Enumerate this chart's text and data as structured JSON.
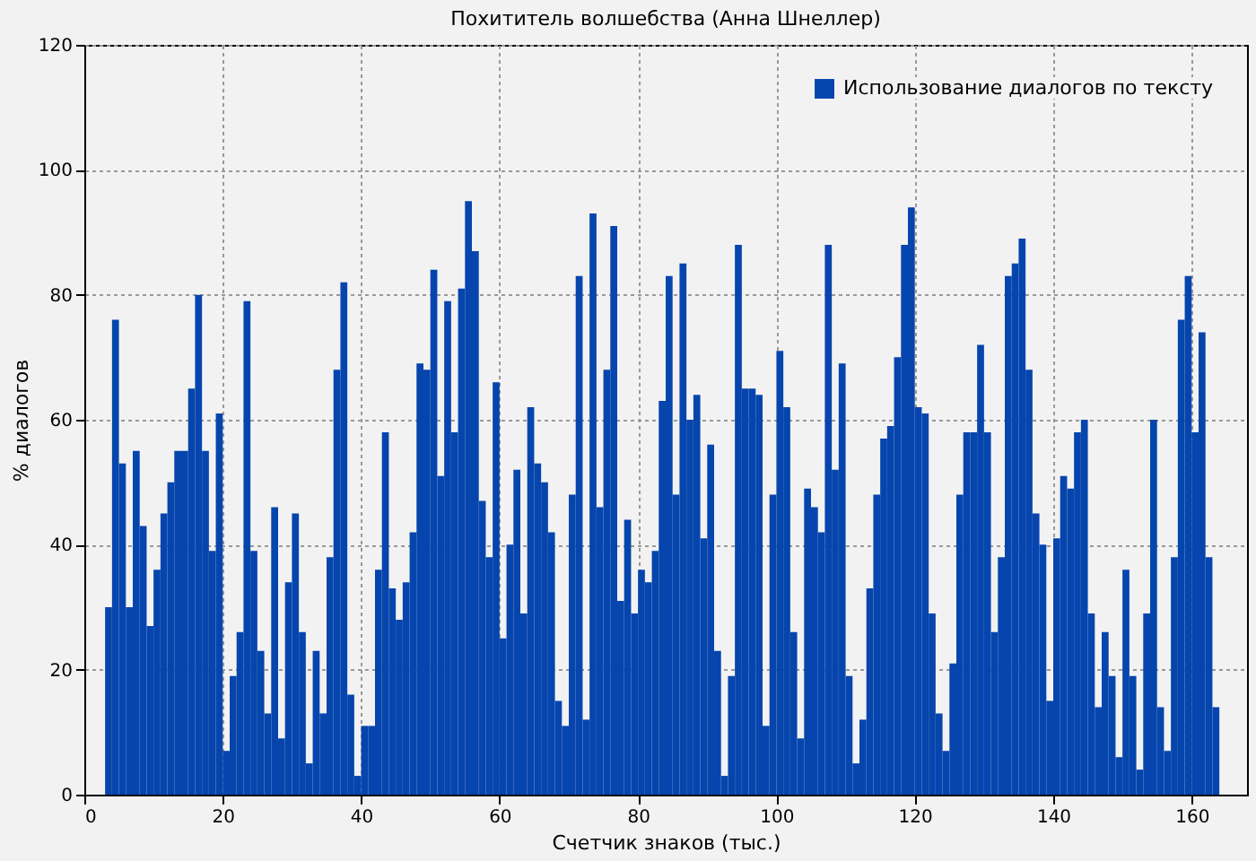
{
  "chart_data": {
    "type": "bar",
    "title": "Похититель волшебства (Анна Шнеллер)",
    "xlabel": "Счетчик знаков (тыс.)",
    "ylabel": "% диалогов",
    "x": [
      3,
      4,
      5,
      6,
      7,
      8,
      9,
      10,
      11,
      12,
      13,
      14,
      15,
      16,
      17,
      18,
      19,
      20,
      21,
      22,
      23,
      24,
      25,
      26,
      27,
      28,
      29,
      30,
      31,
      32,
      33,
      34,
      35,
      36,
      37,
      38,
      39,
      40,
      41,
      42,
      43,
      44,
      45,
      46,
      47,
      48,
      49,
      50,
      51,
      52,
      53,
      54,
      55,
      56,
      57,
      58,
      59,
      60,
      61,
      62,
      63,
      64,
      65,
      66,
      67,
      68,
      69,
      70,
      71,
      72,
      73,
      74,
      75,
      76,
      77,
      78,
      79,
      80,
      81,
      82,
      83,
      84,
      85,
      86,
      87,
      88,
      89,
      90,
      91,
      92,
      93,
      94,
      95,
      96,
      97,
      98,
      99,
      100,
      101,
      102,
      103,
      104,
      105,
      106,
      107,
      108,
      109,
      110,
      111,
      112,
      113,
      114,
      115,
      116,
      117,
      118,
      119,
      120,
      121,
      122,
      123,
      124,
      125,
      126,
      127,
      128,
      129,
      130,
      131,
      132,
      133,
      134,
      135,
      136,
      137,
      138,
      139,
      140,
      141,
      142,
      143,
      144,
      145,
      146,
      147,
      148,
      149,
      150,
      151,
      152,
      153,
      154,
      155,
      156,
      157,
      158,
      159,
      160,
      161,
      162,
      163
    ],
    "series": [
      {
        "name": "Использование диалогов по тексту",
        "color": "#0645ad",
        "values": [
          30,
          76,
          53,
          30,
          55,
          43,
          27,
          36,
          45,
          50,
          55,
          55,
          65,
          80,
          55,
          39,
          61,
          7,
          19,
          26,
          79,
          39,
          23,
          13,
          46,
          9,
          34,
          45,
          26,
          5,
          23,
          13,
          38,
          68,
          82,
          16,
          3,
          11,
          11,
          36,
          58,
          33,
          28,
          34,
          42,
          69,
          68,
          84,
          51,
          79,
          58,
          81,
          95,
          87,
          47,
          38,
          66,
          25,
          40,
          52,
          29,
          62,
          53,
          50,
          42,
          15,
          11,
          48,
          83,
          12,
          93,
          46,
          68,
          91,
          31,
          44,
          29,
          36,
          34,
          39,
          63,
          83,
          48,
          85,
          60,
          64,
          41,
          56,
          23,
          3,
          19,
          88,
          65,
          65,
          64,
          11,
          48,
          71,
          62,
          26,
          9,
          49,
          46,
          42,
          88,
          52,
          69,
          19,
          5,
          12,
          33,
          48,
          57,
          59,
          70,
          88,
          94,
          62,
          61,
          29,
          13,
          7,
          21,
          48,
          58,
          58,
          72,
          58,
          26,
          38,
          83,
          85,
          89,
          68,
          45,
          40,
          15,
          41,
          51,
          49,
          58,
          60,
          29,
          14,
          26,
          19,
          6,
          36,
          19,
          4,
          29,
          60,
          14,
          7,
          38,
          76,
          83,
          58,
          74,
          38,
          14
        ]
      }
    ],
    "xlim": [
      0,
      168
    ],
    "xticks": [
      0,
      20,
      40,
      60,
      80,
      100,
      120,
      140,
      160
    ],
    "ylim": [
      0,
      120
    ],
    "yticks": [
      0,
      20,
      40,
      60,
      80,
      100,
      120
    ],
    "grid": true,
    "legend": "top right"
  }
}
